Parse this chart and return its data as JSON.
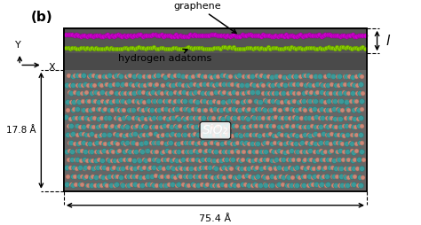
{
  "background_color": "#ffffff",
  "panel_bg": "#555555",
  "graphene_color": "#cc00cc",
  "graphene_edge": "#880088",
  "hydrogen_color": "#88cc00",
  "hydrogen_edge": "#558800",
  "sio2_teal_color": "#3a9a9a",
  "sio2_teal_edge": "#1a7a7a",
  "sio2_pink_color": "#cc8878",
  "sio2_pink_edge": "#aa6655",
  "sio2_bg": "#606060",
  "label_graphene": "graphene",
  "label_hydrogen": "hydrogen adatoms",
  "label_sio2": "SiO₂",
  "label_width": "75.4 Å",
  "label_height": "17.8 Å",
  "label_l": "l",
  "axis_label_b": "(b)",
  "axis_x": "X",
  "axis_y": "Y"
}
